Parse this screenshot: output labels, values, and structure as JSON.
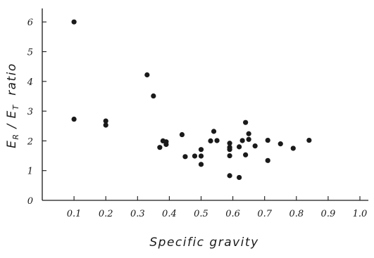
{
  "chart_data": {
    "type": "scatter",
    "title": "",
    "xlabel": "Specific   gravity",
    "ylabel_parts": {
      "e": "E",
      "r": "R",
      "slash": " / ",
      "t": "T",
      "ratio": "ratio"
    },
    "xlim": [
      0,
      1.0
    ],
    "ylim": [
      0,
      6.5
    ],
    "x_ticks": [
      {
        "v": 0.1,
        "label": "0.1"
      },
      {
        "v": 0.2,
        "label": "0.2"
      },
      {
        "v": 0.3,
        "label": "0.3"
      },
      {
        "v": 0.4,
        "label": "0.4"
      },
      {
        "v": 0.5,
        "label": "0.5"
      },
      {
        "v": 0.6,
        "label": "0.6"
      },
      {
        "v": 0.7,
        "label": "0.7"
      },
      {
        "v": 0.8,
        "label": "0.8"
      },
      {
        "v": 0.9,
        "label": "0.9"
      },
      {
        "v": 1.0,
        "label": "1.0"
      }
    ],
    "y_ticks": [
      {
        "v": 0,
        "label": "0"
      },
      {
        "v": 1,
        "label": "1"
      },
      {
        "v": 2,
        "label": "2"
      },
      {
        "v": 3,
        "label": "3"
      },
      {
        "v": 4,
        "label": "4"
      },
      {
        "v": 5,
        "label": "5"
      },
      {
        "v": 6,
        "label": "6"
      }
    ],
    "grid": false,
    "marker_color": "#1a1a1a",
    "points": [
      {
        "x": 0.1,
        "y": 6.0
      },
      {
        "x": 0.1,
        "y": 2.73
      },
      {
        "x": 0.2,
        "y": 2.67
      },
      {
        "x": 0.2,
        "y": 2.53
      },
      {
        "x": 0.33,
        "y": 4.22
      },
      {
        "x": 0.35,
        "y": 3.51
      },
      {
        "x": 0.37,
        "y": 1.78
      },
      {
        "x": 0.38,
        "y": 2.0
      },
      {
        "x": 0.39,
        "y": 1.97
      },
      {
        "x": 0.39,
        "y": 1.88
      },
      {
        "x": 0.44,
        "y": 2.21
      },
      {
        "x": 0.45,
        "y": 1.47
      },
      {
        "x": 0.48,
        "y": 1.49
      },
      {
        "x": 0.5,
        "y": 1.49
      },
      {
        "x": 0.5,
        "y": 1.71
      },
      {
        "x": 0.5,
        "y": 1.21
      },
      {
        "x": 0.53,
        "y": 2.0
      },
      {
        "x": 0.54,
        "y": 2.32
      },
      {
        "x": 0.55,
        "y": 2.01
      },
      {
        "x": 0.59,
        "y": 1.92
      },
      {
        "x": 0.59,
        "y": 1.78
      },
      {
        "x": 0.59,
        "y": 1.71
      },
      {
        "x": 0.59,
        "y": 1.5
      },
      {
        "x": 0.59,
        "y": 0.83
      },
      {
        "x": 0.62,
        "y": 1.8
      },
      {
        "x": 0.62,
        "y": 0.77
      },
      {
        "x": 0.63,
        "y": 2.01
      },
      {
        "x": 0.64,
        "y": 2.62
      },
      {
        "x": 0.64,
        "y": 1.53
      },
      {
        "x": 0.65,
        "y": 2.24
      },
      {
        "x": 0.65,
        "y": 2.05
      },
      {
        "x": 0.67,
        "y": 1.83
      },
      {
        "x": 0.71,
        "y": 2.02
      },
      {
        "x": 0.71,
        "y": 1.34
      },
      {
        "x": 0.75,
        "y": 1.9
      },
      {
        "x": 0.79,
        "y": 1.75
      },
      {
        "x": 0.84,
        "y": 2.02
      }
    ]
  }
}
